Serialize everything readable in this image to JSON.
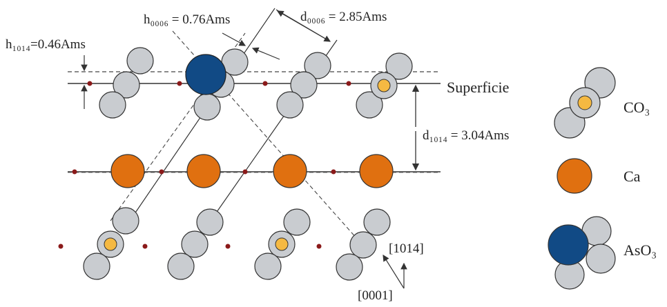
{
  "labels": {
    "h1014": "h₁₀₁₄=0.46Ams",
    "h0006": "h₀₀₀₆ = 0.76Ams",
    "d0006": "d₀₀₀₆ = 2.85Ams",
    "superficie": "Superficie",
    "d1014": "d₁₀₁₄ = 3.04Ams",
    "dir_1014": "[1014]",
    "dir_0001": "[0001]"
  },
  "legend": {
    "co3": "CO₃",
    "ca": "Ca",
    "aso3": "AsO₃"
  },
  "colors": {
    "oxygen": "#c9ccd0",
    "carbon": "#f5b942",
    "calcium": "#e07010",
    "arsenic": "#114a85",
    "dot": "#8b1a1a",
    "line": "#333333"
  }
}
